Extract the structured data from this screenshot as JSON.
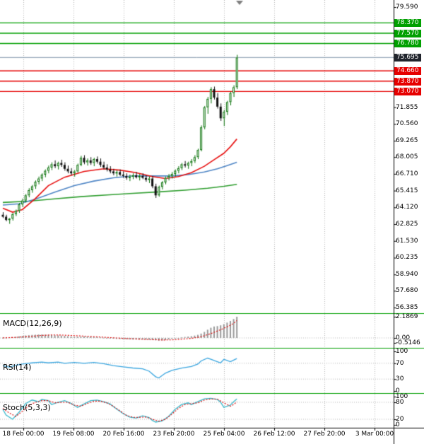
{
  "chart_data": {
    "type": "candlestick",
    "title": "",
    "time_axis": [
      "18 Feb 00:00",
      "19 Feb 08:00",
      "20 Feb 16:00",
      "23 Feb 20:00",
      "25 Feb 04:00",
      "26 Feb 12:00",
      "27 Feb 20:00",
      "3 Mar 00:00"
    ],
    "price_axis_ticks": [
      79.59,
      71.855,
      70.56,
      69.265,
      68.005,
      66.71,
      65.415,
      64.12,
      62.825,
      61.53,
      60.235,
      58.94,
      57.68,
      56.385
    ],
    "levels": {
      "resistance": [
        78.37,
        77.57,
        76.78
      ],
      "support": [
        74.66,
        73.87,
        73.07
      ],
      "current_price": 75.695
    },
    "candles": [
      [
        63.55,
        63.75,
        63.3,
        63.4
      ],
      [
        63.4,
        63.55,
        63.05,
        63.15
      ],
      [
        63.15,
        63.3,
        62.85,
        63.25
      ],
      [
        63.25,
        63.7,
        63.1,
        63.6
      ],
      [
        63.6,
        63.95,
        63.45,
        63.85
      ],
      [
        63.85,
        64.45,
        63.7,
        64.35
      ],
      [
        64.35,
        64.8,
        64.15,
        64.65
      ],
      [
        64.65,
        65.15,
        64.5,
        65.05
      ],
      [
        65.05,
        65.6,
        64.9,
        65.45
      ],
      [
        65.45,
        65.85,
        65.25,
        65.75
      ],
      [
        65.75,
        66.2,
        65.55,
        66.1
      ],
      [
        66.1,
        66.5,
        65.9,
        66.35
      ],
      [
        66.35,
        66.75,
        66.15,
        66.65
      ],
      [
        66.65,
        67.05,
        66.45,
        66.95
      ],
      [
        66.95,
        67.35,
        66.75,
        67.2
      ],
      [
        67.2,
        67.6,
        67.0,
        67.45
      ],
      [
        67.45,
        67.75,
        67.15,
        67.3
      ],
      [
        67.3,
        67.65,
        67.05,
        67.55
      ],
      [
        67.55,
        67.8,
        67.25,
        67.4
      ],
      [
        67.4,
        67.6,
        66.95,
        67.1
      ],
      [
        67.1,
        67.35,
        66.75,
        66.9
      ],
      [
        66.9,
        67.15,
        66.6,
        66.75
      ],
      [
        66.75,
        67.0,
        66.5,
        66.9
      ],
      [
        66.9,
        67.5,
        66.8,
        67.4
      ],
      [
        67.4,
        68.1,
        67.3,
        67.95
      ],
      [
        67.95,
        68.15,
        67.45,
        67.6
      ],
      [
        67.6,
        67.9,
        67.35,
        67.75
      ],
      [
        67.75,
        68.0,
        67.4,
        67.55
      ],
      [
        67.55,
        67.95,
        67.3,
        67.85
      ],
      [
        67.85,
        68.05,
        67.5,
        67.65
      ],
      [
        67.65,
        67.9,
        67.25,
        67.4
      ],
      [
        67.4,
        67.65,
        67.05,
        67.2
      ],
      [
        67.2,
        67.45,
        66.9,
        67.05
      ],
      [
        67.05,
        67.3,
        66.75,
        66.9
      ],
      [
        66.9,
        67.1,
        66.6,
        66.75
      ],
      [
        66.75,
        67.0,
        66.5,
        66.85
      ],
      [
        66.85,
        67.05,
        66.55,
        66.65
      ],
      [
        66.65,
        66.9,
        66.4,
        66.55
      ],
      [
        66.55,
        66.75,
        66.25,
        66.4
      ],
      [
        66.4,
        66.65,
        66.15,
        66.5
      ],
      [
        66.5,
        66.75,
        66.3,
        66.6
      ],
      [
        66.6,
        66.85,
        66.35,
        66.45
      ],
      [
        66.45,
        66.7,
        66.2,
        66.55
      ],
      [
        66.55,
        66.75,
        66.3,
        66.4
      ],
      [
        66.4,
        66.6,
        66.1,
        66.25
      ],
      [
        66.25,
        66.5,
        66.0,
        66.35
      ],
      [
        66.35,
        66.55,
        65.6,
        65.75
      ],
      [
        65.75,
        65.95,
        64.85,
        65.05
      ],
      [
        65.05,
        65.8,
        64.95,
        65.7
      ],
      [
        65.7,
        66.15,
        65.5,
        66.05
      ],
      [
        66.05,
        66.5,
        65.9,
        66.4
      ],
      [
        66.4,
        66.7,
        66.2,
        66.55
      ],
      [
        66.55,
        66.85,
        66.35,
        66.7
      ],
      [
        66.7,
        67.05,
        66.5,
        66.95
      ],
      [
        66.95,
        67.3,
        66.75,
        67.15
      ],
      [
        67.15,
        67.55,
        67.0,
        67.45
      ],
      [
        67.45,
        67.7,
        67.2,
        67.35
      ],
      [
        67.35,
        67.65,
        67.1,
        67.55
      ],
      [
        67.55,
        67.85,
        67.3,
        67.7
      ],
      [
        67.7,
        68.15,
        67.55,
        68.0
      ],
      [
        68.0,
        68.65,
        67.85,
        68.55
      ],
      [
        68.55,
        70.45,
        68.45,
        70.3
      ],
      [
        70.3,
        71.95,
        70.15,
        71.85
      ],
      [
        71.85,
        72.65,
        71.35,
        72.5
      ],
      [
        72.5,
        73.4,
        72.15,
        73.25
      ],
      [
        73.25,
        73.45,
        72.45,
        72.6
      ],
      [
        72.6,
        72.95,
        71.75,
        71.9
      ],
      [
        71.9,
        72.15,
        70.8,
        71.0
      ],
      [
        71.0,
        71.65,
        70.4,
        71.5
      ],
      [
        71.5,
        72.35,
        71.25,
        72.25
      ],
      [
        72.25,
        73.05,
        72.0,
        72.95
      ],
      [
        72.95,
        73.55,
        72.65,
        73.4
      ],
      [
        73.4,
        75.9,
        73.25,
        75.695
      ]
    ],
    "moving_averages": {
      "red": {
        "color": "#e81010",
        "points": [
          [
            0,
            64.05
          ],
          [
            3,
            63.75
          ],
          [
            6,
            63.95
          ],
          [
            10,
            64.8
          ],
          [
            14,
            65.8
          ],
          [
            19,
            66.45
          ],
          [
            25,
            66.9
          ],
          [
            31,
            67.1
          ],
          [
            36,
            67.0
          ],
          [
            41,
            66.8
          ],
          [
            46,
            66.5
          ],
          [
            50,
            66.35
          ],
          [
            54,
            66.5
          ],
          [
            58,
            66.8
          ],
          [
            62,
            67.3
          ],
          [
            65,
            67.8
          ],
          [
            68,
            68.3
          ],
          [
            70,
            68.8
          ],
          [
            72,
            69.4
          ]
        ]
      },
      "blue": {
        "color": "#4f86c6",
        "points": [
          [
            0,
            64.3
          ],
          [
            5,
            64.4
          ],
          [
            10,
            64.75
          ],
          [
            16,
            65.3
          ],
          [
            22,
            65.8
          ],
          [
            28,
            66.15
          ],
          [
            34,
            66.4
          ],
          [
            40,
            66.55
          ],
          [
            46,
            66.55
          ],
          [
            52,
            66.55
          ],
          [
            57,
            66.65
          ],
          [
            62,
            66.85
          ],
          [
            66,
            67.1
          ],
          [
            69,
            67.35
          ],
          [
            72,
            67.6
          ]
        ]
      },
      "green": {
        "color": "#2f9e2f",
        "points": [
          [
            0,
            64.5
          ],
          [
            8,
            64.6
          ],
          [
            16,
            64.78
          ],
          [
            24,
            64.95
          ],
          [
            32,
            65.08
          ],
          [
            40,
            65.2
          ],
          [
            48,
            65.32
          ],
          [
            56,
            65.45
          ],
          [
            63,
            65.6
          ],
          [
            68,
            65.75
          ],
          [
            72,
            65.9
          ]
        ]
      }
    },
    "macd": {
      "label": "MACD(12,26,9)",
      "axis_labels": [
        "2.1869",
        "0.00",
        "-0.5146"
      ],
      "histogram": [
        0.02,
        0.03,
        0.05,
        0.08,
        0.12,
        0.16,
        0.2,
        0.25,
        0.28,
        0.31,
        0.33,
        0.35,
        0.35,
        0.34,
        0.33,
        0.31,
        0.28,
        0.26,
        0.24,
        0.21,
        0.18,
        0.15,
        0.13,
        0.12,
        0.14,
        0.16,
        0.15,
        0.13,
        0.11,
        0.09,
        0.06,
        0.03,
        0.0,
        -0.03,
        -0.06,
        -0.09,
        -0.11,
        -0.13,
        -0.14,
        -0.15,
        -0.16,
        -0.16,
        -0.17,
        -0.17,
        -0.18,
        -0.18,
        -0.2,
        -0.24,
        -0.28,
        -0.26,
        -0.22,
        -0.16,
        -0.1,
        -0.05,
        0.0,
        0.05,
        0.1,
        0.14,
        0.18,
        0.24,
        0.32,
        0.45,
        0.62,
        0.85,
        1.05,
        1.18,
        1.22,
        1.3,
        1.42,
        1.58,
        1.75,
        1.95,
        2.1869
      ],
      "signal": [
        [
          0,
          0.01
        ],
        [
          4,
          0.06
        ],
        [
          8,
          0.15
        ],
        [
          12,
          0.26
        ],
        [
          15,
          0.31
        ],
        [
          18,
          0.3
        ],
        [
          22,
          0.24
        ],
        [
          26,
          0.17
        ],
        [
          30,
          0.1
        ],
        [
          34,
          0.02
        ],
        [
          38,
          -0.06
        ],
        [
          42,
          -0.12
        ],
        [
          46,
          -0.17
        ],
        [
          49,
          -0.21
        ],
        [
          52,
          -0.2
        ],
        [
          55,
          -0.13
        ],
        [
          58,
          -0.04
        ],
        [
          61,
          0.12
        ],
        [
          64,
          0.45
        ],
        [
          67,
          0.85
        ],
        [
          69,
          1.15
        ],
        [
          71,
          1.5
        ],
        [
          72,
          1.8
        ]
      ],
      "colors": {
        "histogram": "#999999",
        "signal": "#e00000"
      }
    },
    "rsi": {
      "label": "RSI(14)",
      "axis_labels": [
        100,
        70,
        30,
        0
      ],
      "levels": [
        70,
        30
      ],
      "points": [
        [
          0,
          64
        ],
        [
          2,
          60
        ],
        [
          4,
          65
        ],
        [
          6,
          68
        ],
        [
          9,
          71
        ],
        [
          12,
          73
        ],
        [
          14,
          71
        ],
        [
          17,
          73
        ],
        [
          19,
          70
        ],
        [
          22,
          72
        ],
        [
          25,
          70
        ],
        [
          28,
          72
        ],
        [
          31,
          69
        ],
        [
          34,
          64
        ],
        [
          37,
          61
        ],
        [
          40,
          58
        ],
        [
          43,
          56
        ],
        [
          45,
          50
        ],
        [
          47,
          36
        ],
        [
          48,
          33
        ],
        [
          50,
          45
        ],
        [
          52,
          52
        ],
        [
          55,
          58
        ],
        [
          58,
          62
        ],
        [
          60,
          68
        ],
        [
          61,
          76
        ],
        [
          63,
          83
        ],
        [
          64,
          80
        ],
        [
          66,
          74
        ],
        [
          67,
          71
        ],
        [
          68,
          80
        ],
        [
          69,
          77
        ],
        [
          70,
          74
        ],
        [
          71,
          78
        ],
        [
          72,
          82
        ]
      ],
      "color": "#3aa6e0"
    },
    "stoch": {
      "label": "Stoch(5,3,3)",
      "axis_labels": [
        100,
        80,
        20,
        0
      ],
      "levels": [
        80,
        20
      ],
      "main": [
        [
          0,
          55
        ],
        [
          1,
          35
        ],
        [
          3,
          20
        ],
        [
          5,
          45
        ],
        [
          7,
          75
        ],
        [
          9,
          88
        ],
        [
          11,
          82
        ],
        [
          12,
          90
        ],
        [
          14,
          86
        ],
        [
          15,
          72
        ],
        [
          17,
          80
        ],
        [
          19,
          86
        ],
        [
          21,
          76
        ],
        [
          23,
          62
        ],
        [
          25,
          74
        ],
        [
          27,
          86
        ],
        [
          29,
          88
        ],
        [
          31,
          82
        ],
        [
          33,
          74
        ],
        [
          35,
          56
        ],
        [
          37,
          40
        ],
        [
          39,
          28
        ],
        [
          41,
          24
        ],
        [
          43,
          32
        ],
        [
          45,
          26
        ],
        [
          46,
          16
        ],
        [
          47,
          10
        ],
        [
          49,
          14
        ],
        [
          51,
          30
        ],
        [
          53,
          55
        ],
        [
          55,
          72
        ],
        [
          57,
          78
        ],
        [
          58,
          72
        ],
        [
          60,
          82
        ],
        [
          62,
          92
        ],
        [
          64,
          94
        ],
        [
          66,
          90
        ],
        [
          67,
          80
        ],
        [
          68,
          62
        ],
        [
          70,
          70
        ],
        [
          71,
          82
        ],
        [
          72,
          92
        ]
      ],
      "signal": [
        [
          0,
          58
        ],
        [
          2,
          42
        ],
        [
          4,
          30
        ],
        [
          6,
          48
        ],
        [
          8,
          68
        ],
        [
          10,
          80
        ],
        [
          12,
          86
        ],
        [
          14,
          86
        ],
        [
          16,
          78
        ],
        [
          18,
          80
        ],
        [
          20,
          80
        ],
        [
          22,
          70
        ],
        [
          24,
          66
        ],
        [
          26,
          76
        ],
        [
          28,
          84
        ],
        [
          30,
          84
        ],
        [
          32,
          78
        ],
        [
          34,
          66
        ],
        [
          36,
          50
        ],
        [
          38,
          34
        ],
        [
          40,
          27
        ],
        [
          42,
          27
        ],
        [
          44,
          28
        ],
        [
          46,
          20
        ],
        [
          48,
          13
        ],
        [
          50,
          20
        ],
        [
          52,
          38
        ],
        [
          54,
          58
        ],
        [
          56,
          72
        ],
        [
          58,
          75
        ],
        [
          60,
          78
        ],
        [
          62,
          88
        ],
        [
          64,
          92
        ],
        [
          66,
          91
        ],
        [
          68,
          78
        ],
        [
          70,
          66
        ],
        [
          71,
          72
        ],
        [
          72,
          82
        ]
      ],
      "colors": {
        "main": "#38b8cc",
        "signal": "#e00000"
      }
    },
    "colors": {
      "background": "#ffffff",
      "bull_border": "#067006",
      "bull_fill": "#ffffff",
      "bear": "#101010",
      "resistance": "#00a000",
      "support": "#e60000",
      "current_line": "#7d93a8",
      "current_label_bg": "#20242c",
      "separator": "#00a000",
      "period_separator": "#b4b4b4",
      "axis": "#000000",
      "text": "#000000"
    }
  }
}
